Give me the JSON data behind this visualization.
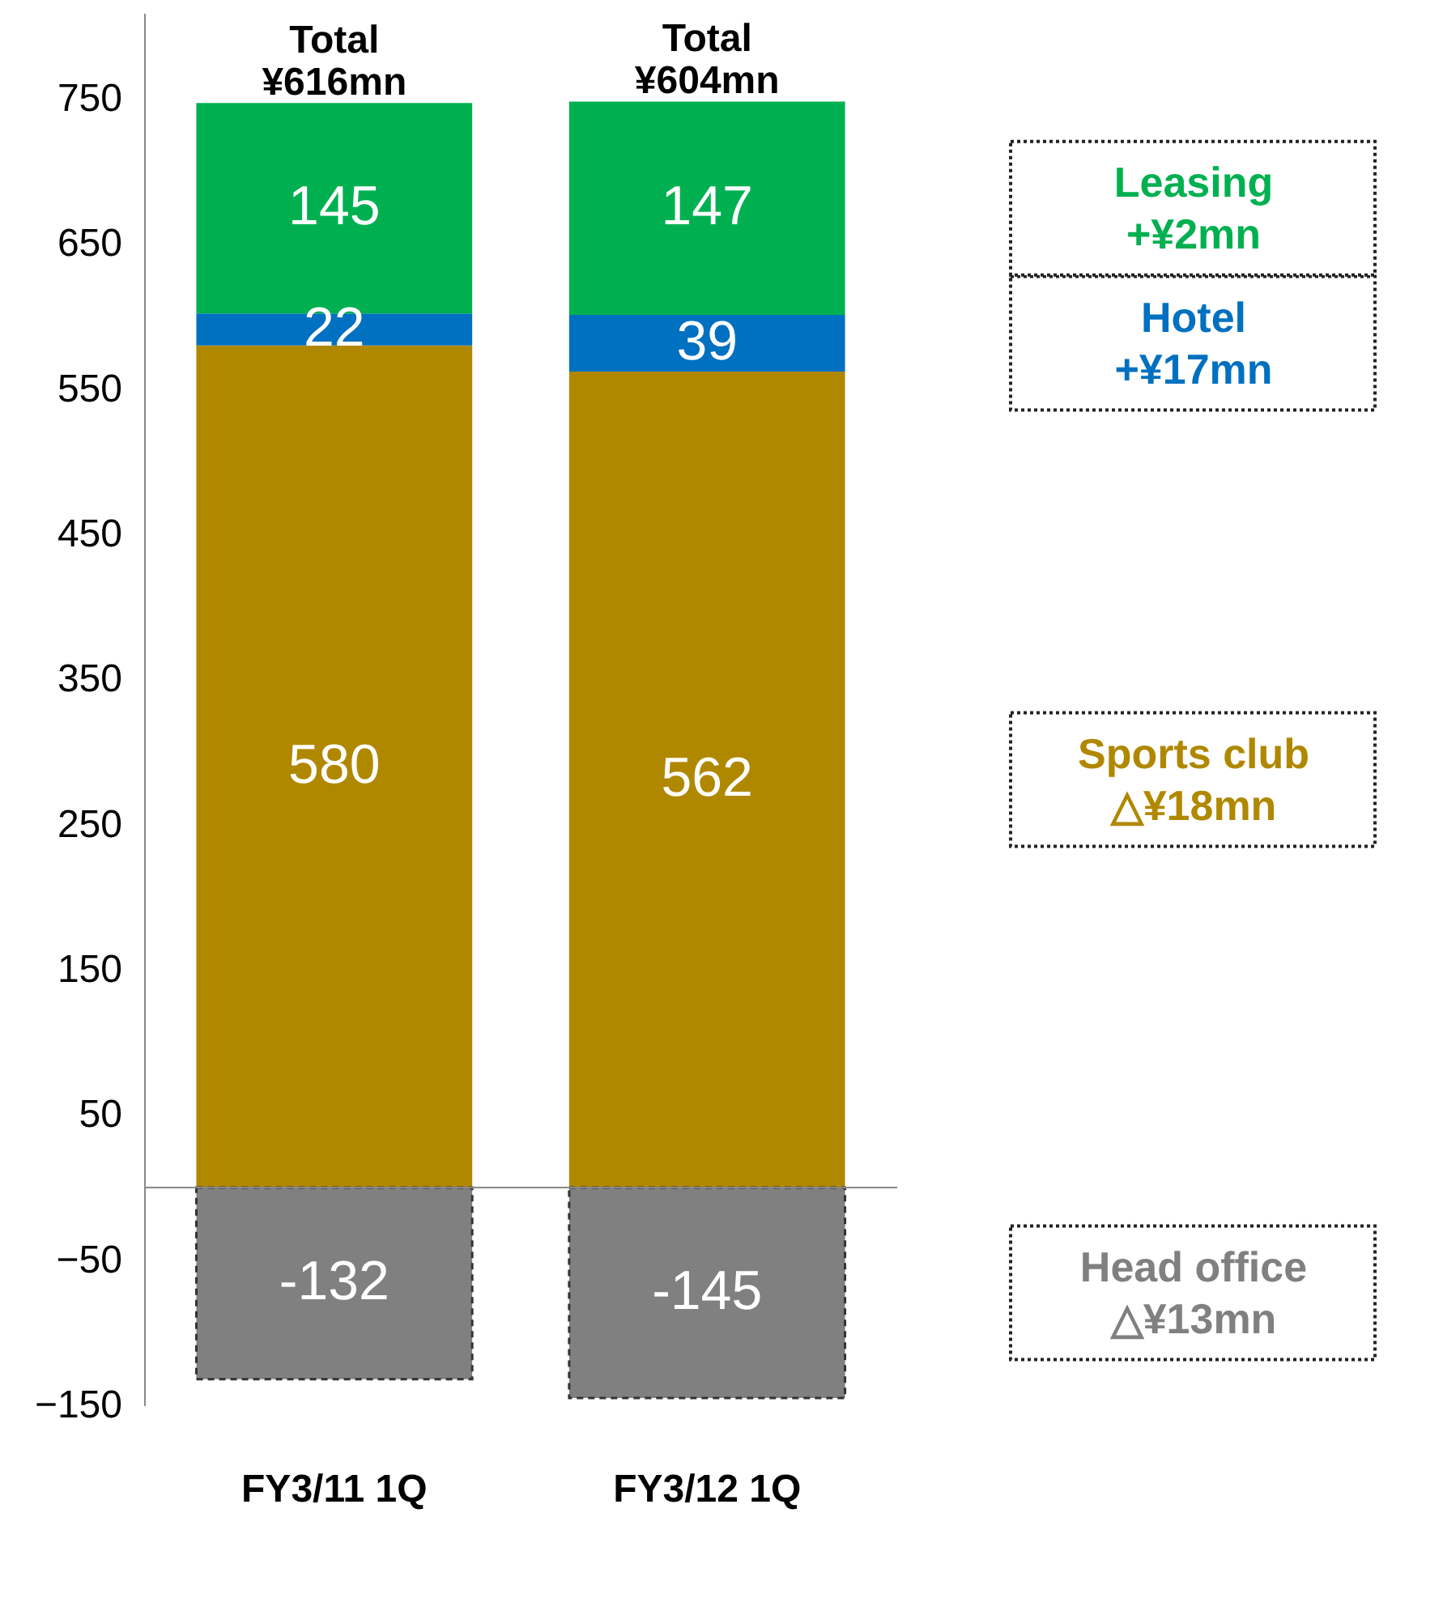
{
  "chart_data": {
    "type": "bar",
    "stacked": true,
    "data_labels": true,
    "categories": [
      "FY3/11 1Q",
      "FY3/12 1Q"
    ],
    "series": [
      {
        "name": "Sports club",
        "color": "#b08800",
        "values": [
          580,
          562
        ]
      },
      {
        "name": "Hotel",
        "color": "#0070c0",
        "values": [
          22,
          39
        ]
      },
      {
        "name": "Leasing",
        "color": "#00b050",
        "values": [
          145,
          147
        ]
      },
      {
        "name": "Head office",
        "color": "#808080",
        "values": [
          -132,
          -145
        ]
      }
    ],
    "ylim": [
      -150,
      809
    ],
    "yticks": [
      -150,
      -50,
      50,
      150,
      250,
      350,
      450,
      550,
      650,
      750
    ],
    "grid": false,
    "annotations": [
      "Total ¥616mn",
      "Total ¥604mn",
      "△¥18mn",
      "+¥17mn",
      "+¥2mn",
      "△¥13mn"
    ]
  }
}
